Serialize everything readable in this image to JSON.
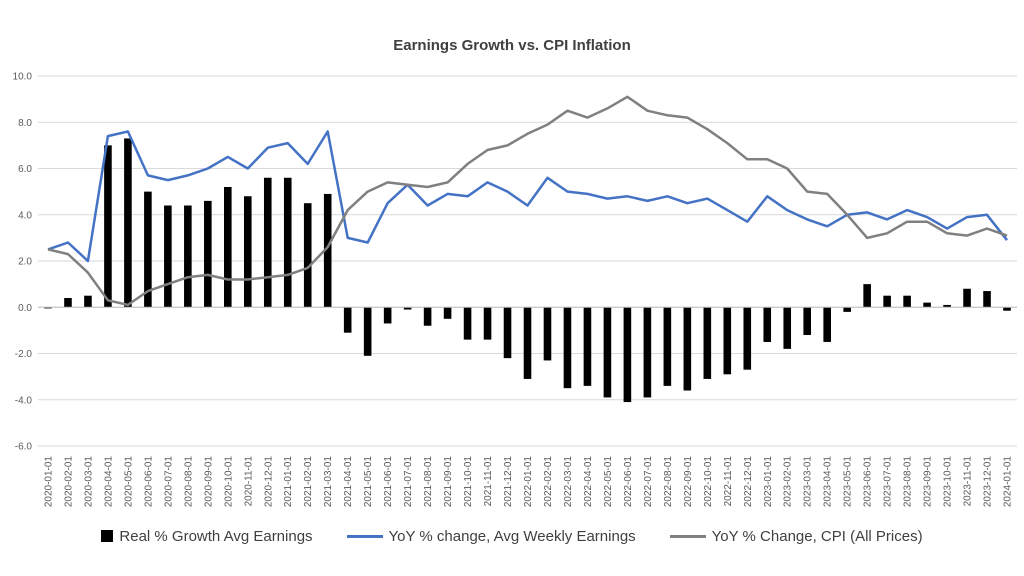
{
  "chart_data": {
    "type": "bar+line",
    "title": "Earnings Growth vs. CPI Inflation",
    "xlabel": "",
    "ylabel": "",
    "ylim": [
      -6.0,
      10.0
    ],
    "yticks": [
      "10.0",
      "8.0",
      "6.0",
      "4.0",
      "2.0",
      "0.0",
      "-2.0",
      "-4.0",
      "-6.0"
    ],
    "grid": true,
    "legend_position": "bottom",
    "categories": [
      "2020-01-01",
      "2020-02-01",
      "2020-03-01",
      "2020-04-01",
      "2020-05-01",
      "2020-06-01",
      "2020-07-01",
      "2020-08-01",
      "2020-09-01",
      "2020-10-01",
      "2020-11-01",
      "2020-12-01",
      "2021-01-01",
      "2021-02-01",
      "2021-03-01",
      "2021-04-01",
      "2021-05-01",
      "2021-06-01",
      "2021-07-01",
      "2021-08-01",
      "2021-09-01",
      "2021-10-01",
      "2021-11-01",
      "2021-12-01",
      "2022-01-01",
      "2022-02-01",
      "2022-03-01",
      "2022-04-01",
      "2022-05-01",
      "2022-06-01",
      "2022-07-01",
      "2022-08-01",
      "2022-09-01",
      "2022-10-01",
      "2022-11-01",
      "2022-12-01",
      "2023-01-01",
      "2023-02-01",
      "2023-03-01",
      "2023-04-01",
      "2023-05-01",
      "2023-06-01",
      "2023-07-01",
      "2023-08-01",
      "2023-09-01",
      "2023-10-01",
      "2023-11-01",
      "2023-12-01",
      "2024-01-01"
    ],
    "series": [
      {
        "name": "Real % Growth Avg Earnings",
        "kind": "bar",
        "color": "#000000",
        "values": [
          -0.05,
          0.4,
          0.5,
          7.0,
          7.3,
          5.0,
          4.4,
          4.4,
          4.6,
          5.2,
          4.8,
          5.6,
          5.6,
          4.5,
          4.9,
          -1.1,
          -2.1,
          -0.7,
          -0.1,
          -0.8,
          -0.5,
          -1.4,
          -1.4,
          -2.2,
          -3.1,
          -2.3,
          -3.5,
          -3.4,
          -3.9,
          -4.1,
          -3.9,
          -3.4,
          -3.6,
          -3.1,
          -2.9,
          -2.7,
          -1.5,
          -1.8,
          -1.2,
          -1.5,
          -0.2,
          1.0,
          0.5,
          0.5,
          0.2,
          0.1,
          0.8,
          0.7,
          -0.15
        ]
      },
      {
        "name": "YoY % change, Avg Weekly Earnings",
        "kind": "line",
        "color": "#4472C4",
        "values": [
          2.5,
          2.8,
          2.0,
          7.4,
          7.6,
          5.7,
          5.5,
          5.7,
          6.0,
          6.5,
          6.0,
          6.9,
          7.1,
          6.2,
          7.6,
          3.0,
          2.8,
          4.5,
          5.3,
          4.4,
          4.9,
          4.8,
          5.4,
          5.0,
          4.4,
          5.6,
          5.0,
          4.9,
          4.7,
          4.8,
          4.6,
          4.8,
          4.5,
          4.7,
          4.2,
          3.7,
          4.8,
          4.2,
          3.8,
          3.5,
          4.0,
          4.1,
          3.8,
          4.2,
          3.9,
          3.4,
          3.9,
          4.0,
          2.9
        ]
      },
      {
        "name": "YoY % Change, CPI (All Prices)",
        "kind": "line",
        "color": "#808080",
        "values": [
          2.5,
          2.3,
          1.5,
          0.3,
          0.1,
          0.7,
          1.0,
          1.3,
          1.4,
          1.2,
          1.2,
          1.3,
          1.4,
          1.7,
          2.6,
          4.2,
          5.0,
          5.4,
          5.3,
          5.2,
          5.4,
          6.2,
          6.8,
          7.0,
          7.5,
          7.9,
          8.5,
          8.2,
          8.6,
          9.1,
          8.5,
          8.3,
          8.2,
          7.7,
          7.1,
          6.4,
          6.4,
          6.0,
          5.0,
          4.9,
          4.0,
          3.0,
          3.2,
          3.7,
          3.7,
          3.2,
          3.1,
          3.4,
          3.1
        ]
      }
    ]
  }
}
